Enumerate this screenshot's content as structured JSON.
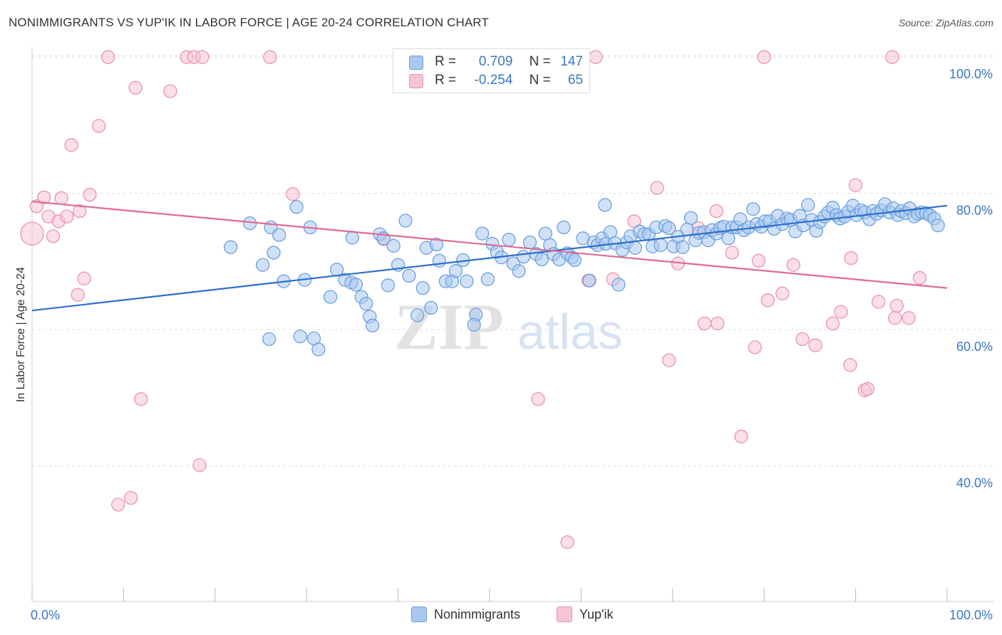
{
  "title": "NONIMMIGRANTS VS YUP'IK IN LABOR FORCE | AGE 20-24 CORRELATION CHART",
  "source": "Source: ZipAtlas.com",
  "watermark": {
    "zip": "ZIP",
    "atlas": "atlas"
  },
  "legend_top": {
    "rows": [
      {
        "r_label": "R =",
        "r_value": "0.709",
        "n_label": "N =",
        "n_value": "147"
      },
      {
        "r_label": "R =",
        "r_value": "-0.254",
        "n_label": "N =",
        "n_value": "65"
      }
    ]
  },
  "colors": {
    "blue_fill": "#a9c8f0",
    "blue_stroke": "#6b9fdf",
    "blue_line": "#2d6fcc",
    "pink_fill": "#f7c4d3",
    "pink_stroke": "#e893ad",
    "pink_line": "#e06a95",
    "axis_text": "#3a76c4",
    "grid": "#dddddd"
  },
  "chart_data": {
    "type": "scatter",
    "title": "NONIMMIGRANTS VS YUP'IK IN LABOR FORCE | AGE 20-24 CORRELATION CHART",
    "xlabel": "",
    "ylabel": "In Labor Force | Age 20-24",
    "xlim": [
      0,
      100
    ],
    "ylim": [
      20,
      102
    ],
    "x_tick_labels": [
      "0.0%",
      "100.0%"
    ],
    "y_ticks": [
      40,
      60,
      80,
      100
    ],
    "y_tick_labels": [
      "40.0%",
      "60.0%",
      "80.0%",
      "100.0%"
    ],
    "grid": true,
    "legend_position": "bottom",
    "series": [
      {
        "name": "Nonimmigrants",
        "r": 0.709,
        "n": 147,
        "trend": {
          "x": [
            0,
            100
          ],
          "y": [
            62.8,
            78.2
          ]
        },
        "points": [
          [
            21.7,
            72.1
          ],
          [
            23.8,
            75.6
          ],
          [
            25.9,
            58.6
          ],
          [
            25.2,
            69.5
          ],
          [
            26.1,
            75.0
          ],
          [
            26.4,
            71.3
          ],
          [
            27.0,
            73.9
          ],
          [
            27.5,
            67.1
          ],
          [
            28.9,
            78.0
          ],
          [
            29.3,
            59.0
          ],
          [
            29.8,
            67.3
          ],
          [
            30.4,
            75.0
          ],
          [
            30.8,
            58.7
          ],
          [
            31.3,
            57.1
          ],
          [
            32.6,
            64.8
          ],
          [
            33.3,
            68.8
          ],
          [
            34.2,
            67.3
          ],
          [
            34.9,
            66.9
          ],
          [
            35.0,
            73.5
          ],
          [
            35.4,
            66.6
          ],
          [
            36.0,
            64.8
          ],
          [
            36.5,
            63.8
          ],
          [
            36.9,
            61.9
          ],
          [
            37.2,
            60.6
          ],
          [
            38.0,
            74.0
          ],
          [
            38.4,
            73.4
          ],
          [
            38.9,
            66.5
          ],
          [
            39.5,
            72.3
          ],
          [
            40.0,
            69.5
          ],
          [
            40.8,
            76.0
          ],
          [
            41.2,
            67.9
          ],
          [
            42.1,
            62.1
          ],
          [
            42.7,
            66.1
          ],
          [
            43.1,
            72.0
          ],
          [
            43.6,
            63.2
          ],
          [
            44.2,
            72.5
          ],
          [
            44.5,
            70.1
          ],
          [
            45.2,
            67.1
          ],
          [
            45.9,
            67.1
          ],
          [
            46.3,
            68.6
          ],
          [
            47.1,
            70.2
          ],
          [
            47.5,
            67.1
          ],
          [
            48.5,
            62.2
          ],
          [
            48.3,
            60.7
          ],
          [
            49.2,
            74.1
          ],
          [
            49.8,
            67.4
          ],
          [
            50.3,
            72.6
          ],
          [
            50.8,
            71.4
          ],
          [
            51.3,
            70.6
          ],
          [
            52.1,
            73.2
          ],
          [
            52.6,
            69.7
          ],
          [
            53.2,
            68.6
          ],
          [
            53.7,
            70.7
          ],
          [
            54.4,
            72.8
          ],
          [
            55.1,
            71.1
          ],
          [
            55.7,
            70.3
          ],
          [
            56.1,
            74.1
          ],
          [
            56.6,
            72.4
          ],
          [
            57.0,
            71.1
          ],
          [
            57.6,
            70.3
          ],
          [
            58.1,
            75.0
          ],
          [
            58.5,
            71.2
          ],
          [
            59.0,
            70.6
          ],
          [
            59.3,
            70.2
          ],
          [
            60.2,
            73.4
          ],
          [
            60.9,
            67.2
          ],
          [
            61.4,
            72.8
          ],
          [
            61.8,
            72.4
          ],
          [
            62.3,
            73.4
          ],
          [
            62.7,
            72.6
          ],
          [
            63.2,
            74.3
          ],
          [
            63.7,
            72.7
          ],
          [
            64.1,
            66.6
          ],
          [
            64.5,
            71.7
          ],
          [
            65.0,
            72.8
          ],
          [
            65.4,
            73.7
          ],
          [
            65.9,
            72.0
          ],
          [
            66.4,
            74.4
          ],
          [
            66.9,
            74.0
          ],
          [
            67.4,
            74.0
          ],
          [
            67.8,
            72.2
          ],
          [
            68.2,
            75.0
          ],
          [
            68.7,
            72.4
          ],
          [
            69.2,
            75.2
          ],
          [
            69.6,
            74.9
          ],
          [
            70.1,
            72.2
          ],
          [
            70.6,
            73.6
          ],
          [
            71.1,
            72.1
          ],
          [
            71.6,
            74.7
          ],
          [
            72.0,
            76.4
          ],
          [
            72.5,
            73.1
          ],
          [
            72.9,
            74.2
          ],
          [
            73.4,
            74.3
          ],
          [
            73.9,
            73.1
          ],
          [
            74.3,
            74.6
          ],
          [
            74.8,
            74.1
          ],
          [
            75.2,
            74.9
          ],
          [
            75.6,
            75.1
          ],
          [
            76.1,
            73.4
          ],
          [
            76.5,
            75.0
          ],
          [
            77.0,
            75.0
          ],
          [
            77.4,
            76.2
          ],
          [
            77.8,
            74.6
          ],
          [
            78.3,
            75.0
          ],
          [
            78.8,
            77.7
          ],
          [
            79.2,
            75.5
          ],
          [
            79.7,
            75.1
          ],
          [
            80.1,
            75.9
          ],
          [
            80.6,
            75.9
          ],
          [
            81.1,
            74.8
          ],
          [
            81.5,
            76.7
          ],
          [
            82.0,
            75.5
          ],
          [
            82.5,
            76.3
          ],
          [
            82.9,
            76.1
          ],
          [
            83.4,
            74.4
          ],
          [
            83.9,
            76.7
          ],
          [
            84.3,
            75.3
          ],
          [
            84.8,
            78.3
          ],
          [
            85.2,
            76.1
          ],
          [
            85.7,
            74.5
          ],
          [
            86.1,
            75.8
          ],
          [
            86.6,
            76.6
          ],
          [
            87.0,
            77.2
          ],
          [
            87.5,
            77.9
          ],
          [
            87.9,
            76.8
          ],
          [
            88.3,
            76.3
          ],
          [
            88.8,
            76.6
          ],
          [
            89.2,
            77.3
          ],
          [
            89.7,
            78.2
          ],
          [
            90.1,
            76.8
          ],
          [
            90.6,
            77.5
          ],
          [
            91.0,
            77.2
          ],
          [
            91.5,
            76.2
          ],
          [
            91.9,
            77.4
          ],
          [
            92.3,
            77.0
          ],
          [
            92.8,
            77.5
          ],
          [
            93.2,
            78.4
          ],
          [
            93.7,
            77.2
          ],
          [
            94.1,
            77.8
          ],
          [
            94.6,
            76.8
          ],
          [
            95.0,
            77.4
          ],
          [
            95.5,
            77.1
          ],
          [
            95.9,
            77.8
          ],
          [
            96.4,
            76.6
          ],
          [
            96.8,
            77.0
          ],
          [
            97.2,
            77.2
          ],
          [
            97.7,
            77.1
          ],
          [
            98.1,
            76.8
          ],
          [
            98.6,
            76.3
          ],
          [
            99.0,
            75.3
          ],
          [
            62.6,
            78.3
          ]
        ]
      },
      {
        "name": "Yup'ik",
        "r": -0.254,
        "n": 65,
        "trend": {
          "x": [
            0,
            100
          ],
          "y": [
            78.8,
            66.1
          ]
        },
        "points": [
          [
            0.0,
            74.1
          ],
          [
            0.5,
            78.1
          ],
          [
            1.3,
            79.4
          ],
          [
            1.8,
            76.6
          ],
          [
            2.3,
            73.7
          ],
          [
            2.9,
            75.9
          ],
          [
            3.2,
            79.3
          ],
          [
            3.8,
            76.6
          ],
          [
            4.3,
            87.1
          ],
          [
            5.0,
            65.1
          ],
          [
            5.2,
            77.4
          ],
          [
            5.7,
            67.5
          ],
          [
            6.3,
            79.8
          ],
          [
            7.3,
            89.9
          ],
          [
            8.3,
            100.0
          ],
          [
            11.3,
            95.5
          ],
          [
            11.9,
            49.8
          ],
          [
            9.4,
            34.3
          ],
          [
            10.8,
            35.3
          ],
          [
            15.1,
            95.0
          ],
          [
            16.9,
            100.0
          ],
          [
            17.7,
            100.0
          ],
          [
            18.6,
            100.0
          ],
          [
            18.3,
            40.1
          ],
          [
            26.0,
            100.0
          ],
          [
            28.5,
            79.9
          ],
          [
            38.4,
            73.3
          ],
          [
            55.3,
            49.8
          ],
          [
            58.5,
            28.8
          ],
          [
            60.0,
            98.0
          ],
          [
            60.2,
            100.0
          ],
          [
            60.8,
            67.2
          ],
          [
            61.6,
            100.0
          ],
          [
            63.5,
            67.4
          ],
          [
            65.8,
            75.9
          ],
          [
            68.3,
            80.8
          ],
          [
            69.6,
            55.5
          ],
          [
            70.6,
            69.7
          ],
          [
            72.8,
            74.9
          ],
          [
            73.5,
            60.9
          ],
          [
            74.8,
            77.4
          ],
          [
            74.9,
            60.9
          ],
          [
            76.5,
            71.3
          ],
          [
            77.5,
            44.3
          ],
          [
            79.0,
            57.4
          ],
          [
            79.4,
            70.1
          ],
          [
            80.0,
            100.0
          ],
          [
            80.4,
            64.3
          ],
          [
            82.0,
            65.3
          ],
          [
            83.2,
            69.5
          ],
          [
            84.2,
            58.6
          ],
          [
            85.6,
            57.7
          ],
          [
            87.5,
            60.9
          ],
          [
            88.4,
            62.6
          ],
          [
            89.4,
            54.8
          ],
          [
            89.5,
            70.5
          ],
          [
            90.0,
            81.2
          ],
          [
            91.0,
            51.1
          ],
          [
            91.3,
            51.3
          ],
          [
            92.5,
            64.1
          ],
          [
            94.0,
            100.0
          ],
          [
            94.3,
            61.7
          ],
          [
            94.5,
            63.5
          ],
          [
            95.8,
            61.7
          ],
          [
            97.0,
            67.6
          ]
        ]
      }
    ]
  }
}
